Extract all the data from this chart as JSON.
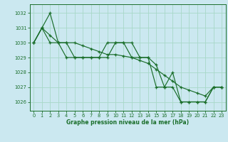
{
  "title": "Graphe pression niveau de la mer (hPa)",
  "bg_color": "#cbe8f0",
  "grid_color": "#a8d8c8",
  "line_color": "#1a6e2a",
  "ylim": [
    1025.4,
    1032.6
  ],
  "xlim": [
    -0.5,
    23.5
  ],
  "yticks": [
    1026,
    1027,
    1028,
    1029,
    1030,
    1031,
    1032
  ],
  "xticks": [
    0,
    1,
    2,
    3,
    4,
    5,
    6,
    7,
    8,
    9,
    10,
    11,
    12,
    13,
    14,
    15,
    16,
    17,
    18,
    19,
    20,
    21,
    22,
    23
  ],
  "series": [
    [
      1030.0,
      1031.0,
      1032.0,
      1030.0,
      1030.0,
      1029.0,
      1029.0,
      1029.0,
      1029.0,
      1030.0,
      1030.0,
      1030.0,
      1030.0,
      1029.0,
      1029.0,
      1027.0,
      1027.0,
      1028.0,
      1026.0,
      1026.0,
      1026.0,
      1026.0,
      1027.0,
      1027.0
    ],
    [
      1030.0,
      1031.0,
      1030.0,
      1030.0,
      1029.0,
      1029.0,
      1029.0,
      1029.0,
      1029.0,
      1029.0,
      1030.0,
      1030.0,
      1029.0,
      1029.0,
      1029.0,
      1028.5,
      1027.0,
      1027.0,
      1026.0,
      1026.0,
      1026.0,
      1026.0,
      1027.0,
      1027.0
    ],
    [
      1030.0,
      1031.0,
      1030.5,
      1030.0,
      1030.0,
      1030.0,
      1029.8,
      1029.6,
      1029.4,
      1029.2,
      1029.2,
      1029.1,
      1029.0,
      1028.8,
      1028.6,
      1028.2,
      1027.8,
      1027.4,
      1027.0,
      1026.8,
      1026.6,
      1026.4,
      1027.0,
      1027.0
    ]
  ]
}
